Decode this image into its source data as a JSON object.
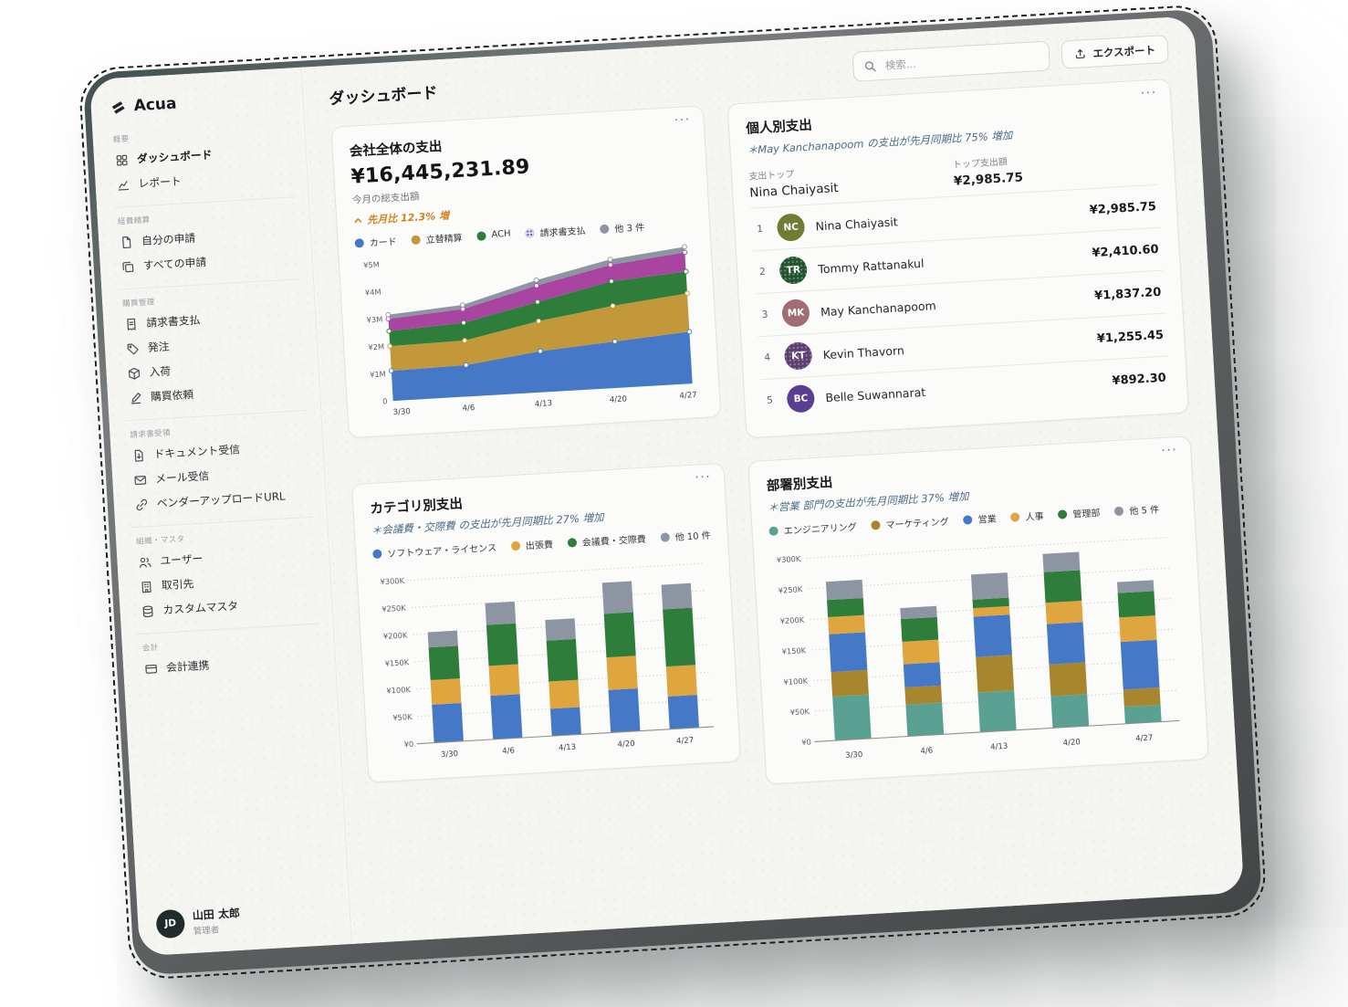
{
  "ui": {
    "more_glyph": "···"
  },
  "brand": {
    "name": "Acua"
  },
  "header": {
    "title": "ダッシュボード",
    "search_placeholder": "検索...",
    "export_label": "エクスポート"
  },
  "sidebar": {
    "sections": [
      {
        "label": "概要",
        "items": [
          {
            "icon": "grid",
            "label": "ダッシュボード",
            "active": true
          },
          {
            "icon": "report",
            "label": "レポート"
          }
        ]
      },
      {
        "label": "経費精算",
        "items": [
          {
            "icon": "doc",
            "label": "自分の申請"
          },
          {
            "icon": "copy",
            "label": "すべての申請"
          }
        ]
      },
      {
        "label": "購買管理",
        "items": [
          {
            "icon": "invoice",
            "label": "請求書支払"
          },
          {
            "icon": "tag",
            "label": "発注"
          },
          {
            "icon": "box",
            "label": "入荷"
          },
          {
            "icon": "edit",
            "label": "購買依頼"
          }
        ]
      },
      {
        "label": "請求書受領",
        "items": [
          {
            "icon": "doc-download",
            "label": "ドキュメント受信"
          },
          {
            "icon": "mail",
            "label": "メール受信"
          },
          {
            "icon": "link",
            "label": "ベンダーアップロードURL"
          }
        ]
      },
      {
        "label": "組織・マスタ",
        "items": [
          {
            "icon": "users",
            "label": "ユーザー"
          },
          {
            "icon": "building",
            "label": "取引先"
          },
          {
            "icon": "database",
            "label": "カスタムマスタ"
          }
        ]
      },
      {
        "label": "会計",
        "items": [
          {
            "icon": "card",
            "label": "会計連携"
          }
        ]
      }
    ]
  },
  "user": {
    "initials": "JD",
    "name": "山田 太郎",
    "role": "管理者"
  },
  "cards": {
    "company": {
      "title": "会社全体の支出",
      "total": "¥16,445,231.89",
      "subtitle": "今月の総支出額",
      "trend": "先月比 12.3% 増",
      "trend_color": "#d4811e"
    },
    "people": {
      "title": "個人別支出",
      "insight": "＊May Kanchanapoom の支出が先月同期比 75% 増加",
      "stats": {
        "top_spender_label": "支出トップ",
        "top_spender": "Nina Chaiyasit",
        "top_amount_label": "トップ支出額",
        "top_amount": "¥2,985.75"
      },
      "rows": [
        {
          "rank": "1",
          "initials": "NC",
          "color": "#6e7c34",
          "pattern": false,
          "name": "Nina Chaiyasit",
          "amount": "¥2,985.75"
        },
        {
          "rank": "2",
          "initials": "TR",
          "color": "#24532f",
          "pattern": true,
          "name": "Tommy Rattanakul",
          "amount": "¥2,410.60"
        },
        {
          "rank": "3",
          "initials": "MK",
          "color": "#a26d74",
          "pattern": false,
          "name": "May Kanchanapoom",
          "amount": "¥1,837.20"
        },
        {
          "rank": "4",
          "initials": "KT",
          "color": "#5d3f72",
          "pattern": true,
          "name": "Kevin Thavorn",
          "amount": "¥1,255.45"
        },
        {
          "rank": "5",
          "initials": "BC",
          "color": "#5a3e92",
          "pattern": false,
          "name": "Belle Suwannarat",
          "amount": "¥892.30"
        }
      ]
    },
    "category": {
      "title": "カテゴリ別支出",
      "insight": "＊会議費・交際費 の支出が先月同期比 27% 増加"
    },
    "department": {
      "title": "部署別支出",
      "insight": "＊営業 部門の支出が先月同期比 37% 増加"
    }
  },
  "chart_data": [
    {
      "id": "company_spend",
      "type": "area",
      "title": "会社全体の支出",
      "xlabel": "",
      "ylabel": "",
      "legend_position": "top",
      "grid": "off",
      "x": [
        "3/30",
        "4/6",
        "4/13",
        "4/20",
        "4/27"
      ],
      "y_max": 5150000,
      "y_ticks": [
        {
          "v": 0,
          "label": "0"
        },
        {
          "v": 1000000,
          "label": "¥1M"
        },
        {
          "v": 2000000,
          "label": "¥2M"
        },
        {
          "v": 3000000,
          "label": "¥3M"
        },
        {
          "v": 4000000,
          "label": "¥4M"
        },
        {
          "v": 5000000,
          "label": "¥5M"
        }
      ],
      "series": [
        {
          "name": "カード",
          "color": "#4678c8",
          "pattern": false,
          "values": [
            1100000,
            1150000,
            1500000,
            1700000,
            1900000
          ]
        },
        {
          "name": "立替精算",
          "color": "#c2983a",
          "pattern": false,
          "values": [
            900000,
            900000,
            1100000,
            1300000,
            1400000
          ]
        },
        {
          "name": "ACH",
          "color": "#2e7d3b",
          "pattern": false,
          "values": [
            550000,
            650000,
            700000,
            900000,
            800000
          ]
        },
        {
          "name": "請求書支払",
          "color": "#a944a0",
          "pattern": true,
          "values": [
            450000,
            500000,
            600000,
            600000,
            700000
          ]
        },
        {
          "name": "他 3 件",
          "color": "#8d95a3",
          "pattern": false,
          "values": [
            150000,
            150000,
            200000,
            200000,
            200000
          ]
        }
      ]
    },
    {
      "id": "category_spend",
      "type": "bar",
      "title": "カテゴリ別支出",
      "xlabel": "",
      "ylabel": "",
      "legend_position": "top",
      "grid": "dotted",
      "x": [
        "3/30",
        "4/6",
        "4/13",
        "4/20",
        "4/27"
      ],
      "y_max": 315000,
      "y_ticks": [
        {
          "v": 0,
          "label": "¥0"
        },
        {
          "v": 50000,
          "label": "¥50K"
        },
        {
          "v": 100000,
          "label": "¥100K"
        },
        {
          "v": 150000,
          "label": "¥150K"
        },
        {
          "v": 200000,
          "label": "¥200K"
        },
        {
          "v": 250000,
          "label": "¥250K"
        },
        {
          "v": 300000,
          "label": "¥300K"
        }
      ],
      "series": [
        {
          "name": "ソフトウェア・ライセンス",
          "color": "#4678c8",
          "pattern": false,
          "values": [
            70000,
            80000,
            50000,
            78000,
            60000
          ]
        },
        {
          "name": "出張費",
          "color": "#dfa53e",
          "pattern": false,
          "values": [
            45000,
            55000,
            50000,
            60000,
            55000
          ]
        },
        {
          "name": "会議費・交際費",
          "color": "#2e7d3b",
          "pattern": false,
          "values": [
            60000,
            75000,
            75000,
            80000,
            105000
          ]
        },
        {
          "name": "他 10 件",
          "color": "#8d95a3",
          "pattern": false,
          "values": [
            28000,
            40000,
            38000,
            57000,
            45000
          ]
        }
      ]
    },
    {
      "id": "department_spend",
      "type": "bar",
      "title": "部署別支出",
      "xlabel": "",
      "ylabel": "",
      "legend_position": "top",
      "grid": "dotted",
      "x": [
        "3/30",
        "4/6",
        "4/13",
        "4/20",
        "4/27"
      ],
      "y_max": 315000,
      "y_ticks": [
        {
          "v": 0,
          "label": "¥0"
        },
        {
          "v": 50000,
          "label": "¥50K"
        },
        {
          "v": 100000,
          "label": "¥100K"
        },
        {
          "v": 150000,
          "label": "¥150K"
        },
        {
          "v": 200000,
          "label": "¥200K"
        },
        {
          "v": 250000,
          "label": "¥250K"
        },
        {
          "v": 300000,
          "label": "¥300K"
        }
      ],
      "series": [
        {
          "name": "エンジニアリング",
          "color": "#5ba193",
          "pattern": false,
          "values": [
            72000,
            52000,
            65000,
            52000,
            28000
          ]
        },
        {
          "name": "マーケティング",
          "color": "#a8862e",
          "pattern": false,
          "values": [
            40000,
            28000,
            58000,
            52000,
            28000
          ]
        },
        {
          "name": "営業",
          "color": "#4678c8",
          "pattern": false,
          "values": [
            62000,
            38000,
            66000,
            66000,
            78000
          ]
        },
        {
          "name": "人事",
          "color": "#dfa53e",
          "pattern": false,
          "values": [
            28000,
            37000,
            14000,
            35000,
            40000
          ]
        },
        {
          "name": "管理部",
          "color": "#2e7d3b",
          "pattern": false,
          "values": [
            28000,
            37000,
            14000,
            50000,
            40000
          ]
        },
        {
          "name": "他 5 件",
          "color": "#8d95a3",
          "pattern": false,
          "values": [
            30000,
            18000,
            41000,
            30000,
            18000
          ]
        }
      ]
    }
  ]
}
